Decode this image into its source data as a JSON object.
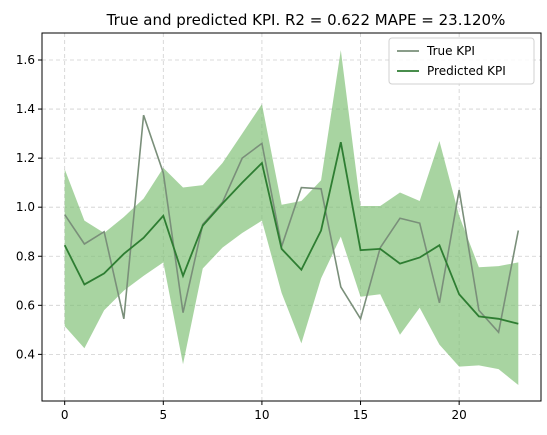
{
  "chart_data": {
    "type": "line",
    "title": "True and predicted KPI. R2 = 0.622 MAPE = 23.120%",
    "xlabel": "",
    "ylabel": "",
    "xlim": [
      -1.15,
      24.15
    ],
    "ylim": [
      0.21,
      1.71
    ],
    "xticks": [
      0,
      5,
      10,
      15,
      20
    ],
    "yticks": [
      0.4,
      0.6,
      0.8,
      1.0,
      1.2,
      1.4,
      1.6
    ],
    "ytick_labels": [
      "0.4",
      "0.6",
      "0.8",
      "1.0",
      "1.2",
      "1.4",
      "1.6"
    ],
    "grid": true,
    "legend_position": "top-right",
    "x": [
      0,
      1,
      2,
      3,
      4,
      5,
      6,
      7,
      8,
      9,
      10,
      11,
      12,
      13,
      14,
      15,
      16,
      17,
      18,
      19,
      20,
      21,
      22,
      23
    ],
    "series": [
      {
        "name": "True KPI",
        "color": "#7a8f7a",
        "values": [
          0.97,
          0.85,
          0.9,
          0.545,
          1.375,
          1.14,
          0.57,
          0.93,
          1.02,
          1.2,
          1.26,
          0.84,
          1.08,
          1.075,
          0.675,
          0.545,
          0.835,
          0.955,
          0.935,
          0.61,
          1.07,
          0.58,
          0.49,
          0.905
        ]
      },
      {
        "name": "Predicted KPI",
        "color": "#2e7d32",
        "values": [
          0.845,
          0.685,
          0.73,
          0.81,
          0.875,
          0.965,
          0.72,
          0.925,
          1.015,
          1.1,
          1.18,
          0.83,
          0.745,
          0.905,
          1.265,
          0.825,
          0.83,
          0.77,
          0.795,
          0.845,
          0.645,
          0.555,
          0.545,
          0.525
        ]
      }
    ],
    "band": {
      "color": "#7fbf75",
      "upper": [
        1.155,
        0.945,
        0.895,
        0.96,
        1.035,
        1.16,
        1.08,
        1.09,
        1.18,
        1.3,
        1.42,
        1.01,
        1.025,
        1.11,
        1.64,
        1.005,
        1.005,
        1.06,
        1.025,
        1.27,
        0.965,
        0.755,
        0.76,
        0.775
      ],
      "lower": [
        0.515,
        0.425,
        0.58,
        0.66,
        0.72,
        0.775,
        0.36,
        0.75,
        0.835,
        0.895,
        0.945,
        0.65,
        0.445,
        0.71,
        0.88,
        0.635,
        0.645,
        0.48,
        0.59,
        0.44,
        0.35,
        0.355,
        0.34,
        0.275
      ]
    }
  }
}
